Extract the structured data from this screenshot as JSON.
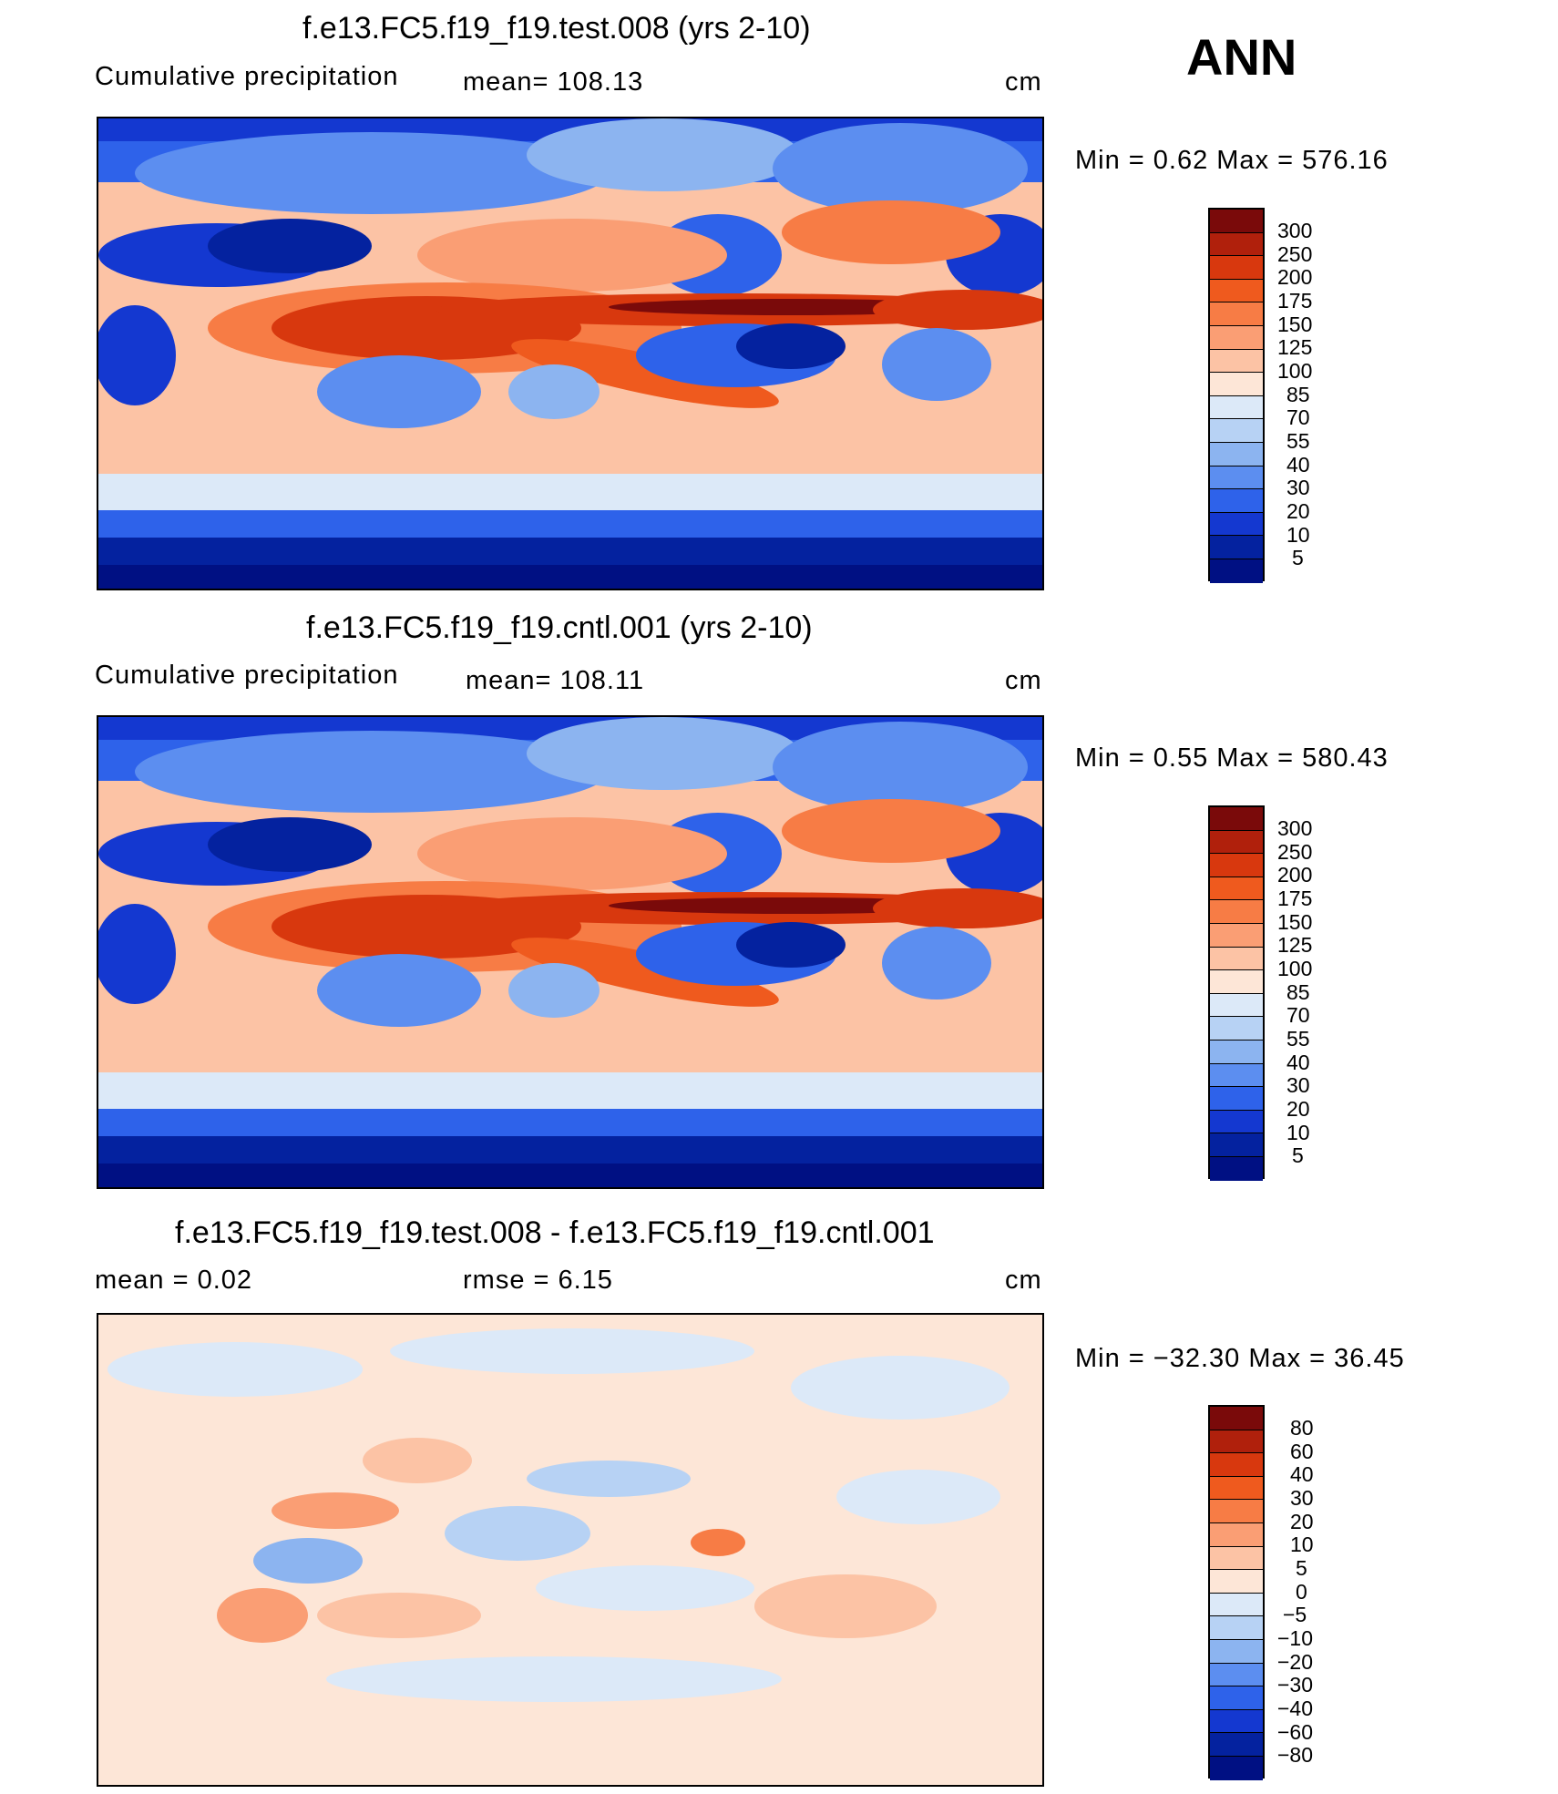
{
  "header": {
    "season": "ANN"
  },
  "panels": [
    {
      "title": "f.e13.FC5.f19_f19.test.008 (yrs 2-10)",
      "field_label": "Cumulative precipitation",
      "stat_text": "mean=  108.13",
      "units": "cm",
      "minmax": "Min  =     0.62  Max  =  576.16",
      "colorbar_labels": [
        "300",
        "250",
        "200",
        "175",
        "150",
        "125",
        "100",
        "85",
        "70",
        "55",
        "40",
        "30",
        "20",
        "10",
        "5"
      ]
    },
    {
      "title": "f.e13.FC5.f19_f19.cntl.001 (yrs 2-10)",
      "field_label": "Cumulative precipitation",
      "stat_text": "mean=  108.11",
      "units": "cm",
      "minmax": "Min  =     0.55  Max  =  580.43",
      "colorbar_labels": [
        "300",
        "250",
        "200",
        "175",
        "150",
        "125",
        "100",
        "85",
        "70",
        "55",
        "40",
        "30",
        "20",
        "10",
        "5"
      ]
    },
    {
      "title": "f.e13.FC5.f19_f19.test.008 - f.e13.FC5.f19_f19.cntl.001",
      "field_label": "mean  =     0.02",
      "stat_text": "rmse  =     6.15",
      "units": "cm",
      "minmax": "Min  = −32.30  Max  =    36.45",
      "colorbar_labels": [
        "80",
        "60",
        "40",
        "30",
        "20",
        "10",
        "5",
        "0",
        "−5",
        "−10",
        "−20",
        "−30",
        "−40",
        "−60",
        "−80"
      ]
    }
  ],
  "colors": {
    "precip_scale": [
      "#7a0a0a",
      "#b0200c",
      "#d8380e",
      "#ef5a1e",
      "#f77c45",
      "#fa9e74",
      "#fcc3a5",
      "#fde6d7",
      "#dce9f8",
      "#b7d2f4",
      "#8cb4f0",
      "#5c8ef0",
      "#2e62ea",
      "#1438d0",
      "#04229f",
      "#001083"
    ],
    "diff_scale": [
      "#7a0a0a",
      "#b0200c",
      "#d8380e",
      "#ef5a1e",
      "#f77c45",
      "#fa9e74",
      "#fcc3a5",
      "#fde6d7",
      "#dce9f8",
      "#b7d2f4",
      "#8cb4f0",
      "#5c8ef0",
      "#2e62ea",
      "#1438d0",
      "#04229f",
      "#001083"
    ]
  }
}
